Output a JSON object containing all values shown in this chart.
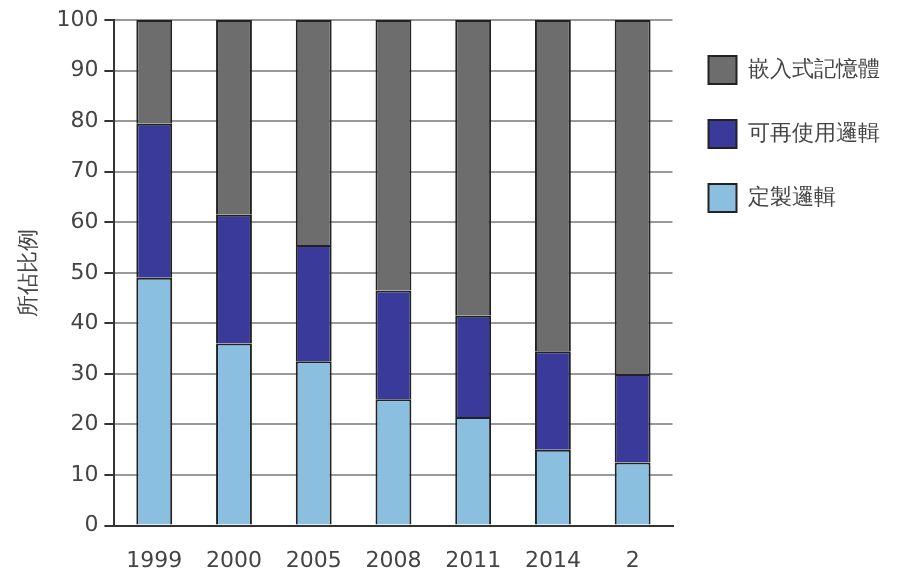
{
  "chart_data": {
    "type": "bar",
    "stacked": true,
    "ylabel": "所佔比例",
    "categories": [
      "1999",
      "2000",
      "2005",
      "2008",
      "2011",
      "2014",
      "2"
    ],
    "series": [
      {
        "name": "定製邏輯",
        "color": "#8bbfe0",
        "values": [
          49,
          36,
          32.5,
          25,
          21.5,
          15,
          12.5
        ]
      },
      {
        "name": "可再使用邏輯",
        "color": "#3a3a9a",
        "values": [
          30.5,
          25.5,
          23,
          21.5,
          20,
          19.5,
          17.5
        ]
      },
      {
        "name": "嵌入式記憶體",
        "color": "#6d6d6d",
        "values": [
          20.5,
          38.5,
          44.5,
          53.5,
          58.5,
          65.5,
          70
        ]
      }
    ],
    "ylim": [
      0,
      100
    ],
    "yticks": [
      0,
      10,
      20,
      30,
      40,
      50,
      60,
      70,
      80,
      90,
      100
    ],
    "grid": "y",
    "legend": "right"
  }
}
